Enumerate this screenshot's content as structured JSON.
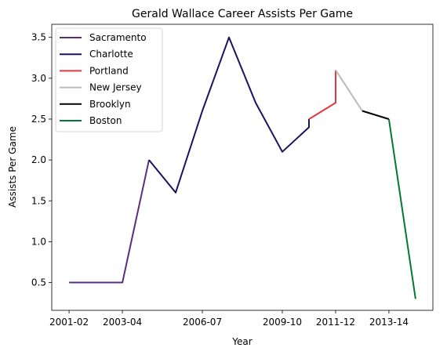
{
  "chart_data": {
    "type": "line",
    "title": "Gerald Wallace Career Assists Per Game",
    "xlabel": "Year",
    "ylabel": "Assists Per Game",
    "x_ticks": [
      "2001-02",
      "2003-04",
      "2006-07",
      "2009-10",
      "2011-12",
      "2013-14"
    ],
    "y_ticks": [
      "0.5",
      "1.0",
      "1.5",
      "2.0",
      "2.5",
      "3.0",
      "3.5"
    ],
    "ylim": [
      0.16,
      3.66
    ],
    "legend_position": "top-left",
    "grid": false,
    "series": [
      {
        "name": "Sacramento",
        "color": "#5a2d82",
        "points": [
          [
            "2001-02",
            0.5
          ],
          [
            "2002-03",
            0.5
          ],
          [
            "2003-04",
            0.5
          ],
          [
            "2004-05",
            2.0
          ]
        ]
      },
      {
        "name": "Charlotte",
        "color": "#1d1160",
        "points": [
          [
            "2004-05",
            2.0
          ],
          [
            "2005-06",
            1.6
          ],
          [
            "2006-07",
            2.6
          ],
          [
            "2007-08",
            3.5
          ],
          [
            "2008-09",
            2.7
          ],
          [
            "2009-10",
            2.1
          ],
          [
            "2010-11",
            2.4
          ],
          [
            "2010-11",
            2.5
          ]
        ]
      },
      {
        "name": "Portland",
        "color": "#e03a3e",
        "points": [
          [
            "2010-11",
            2.5
          ],
          [
            "2011-12",
            2.7
          ],
          [
            "2011-12",
            3.1
          ]
        ]
      },
      {
        "name": "New Jersey",
        "color": "#bbbbbb",
        "points": [
          [
            "2011-12",
            3.1
          ],
          [
            "2012-13",
            2.6
          ]
        ]
      },
      {
        "name": "Brooklyn",
        "color": "#000000",
        "points": [
          [
            "2012-13",
            2.6
          ],
          [
            "2013-14",
            2.5
          ]
        ]
      },
      {
        "name": "Boston",
        "color": "#007a33",
        "points": [
          [
            "2013-14",
            2.5
          ],
          [
            "2014-15",
            0.3
          ]
        ]
      }
    ]
  }
}
